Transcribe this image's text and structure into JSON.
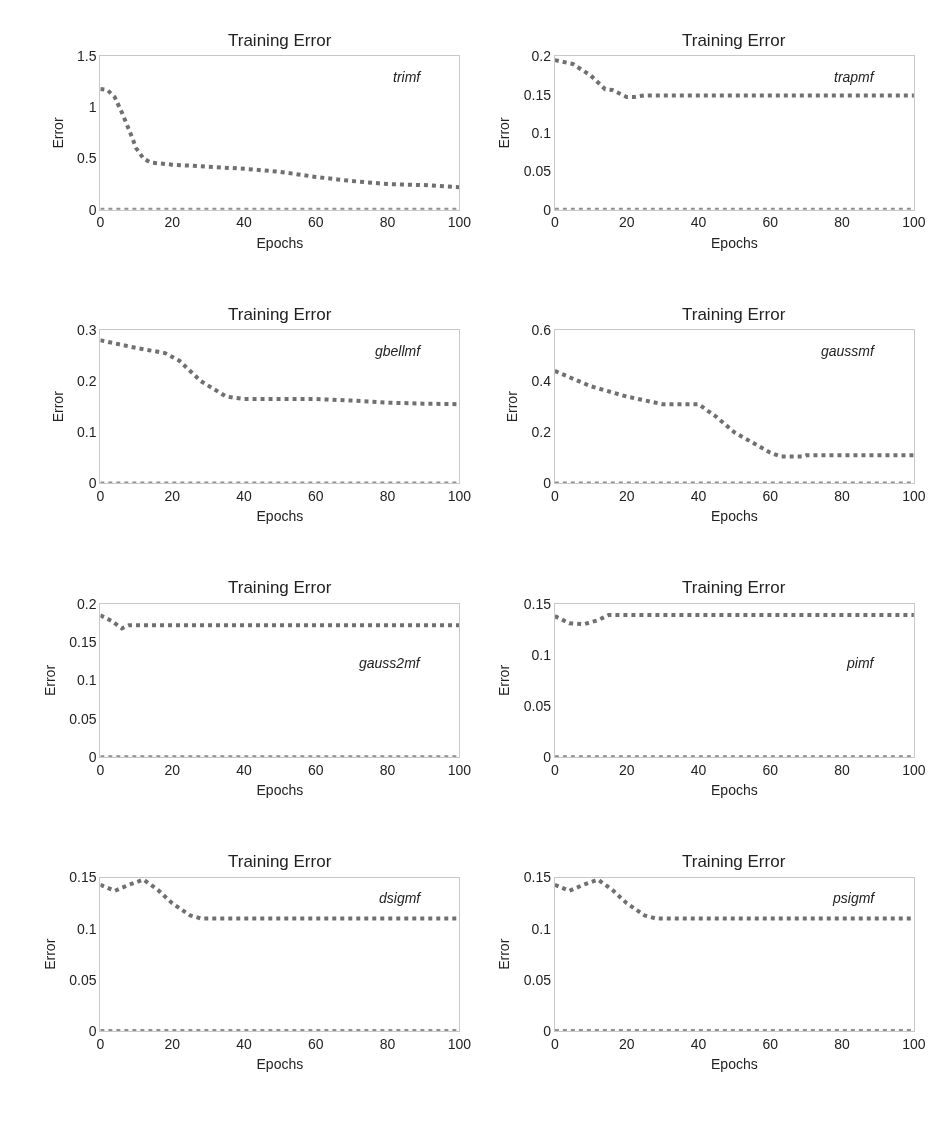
{
  "chart_data": [
    {
      "type": "line",
      "title": "Training Error",
      "xlabel": "Epochs",
      "ylabel": "Error",
      "annotations": [
        "trimf"
      ],
      "xlim": [
        0,
        100
      ],
      "xticks": [
        0,
        20,
        40,
        60,
        80,
        100
      ],
      "ylim": [
        0,
        1.5
      ],
      "yticks": [
        0,
        0.5,
        1,
        1.5
      ],
      "line_style": "dotted",
      "series": [
        {
          "color": "#707070",
          "x": [
            0,
            2,
            4,
            6,
            8,
            10,
            12,
            14,
            20,
            30,
            40,
            50,
            60,
            70,
            80,
            90,
            100
          ],
          "values": [
            1.18,
            1.17,
            1.1,
            0.95,
            0.78,
            0.6,
            0.5,
            0.46,
            0.44,
            0.42,
            0.4,
            0.37,
            0.32,
            0.28,
            0.25,
            0.24,
            0.22
          ]
        },
        {
          "color": "#909090",
          "x": [
            0,
            100
          ],
          "values": [
            0,
            0
          ]
        }
      ]
    },
    {
      "type": "line",
      "title": "Training Error",
      "xlabel": "Epochs",
      "ylabel": "Error",
      "annotations": [
        "trapmf"
      ],
      "xlim": [
        0,
        100
      ],
      "xticks": [
        0,
        20,
        40,
        60,
        80,
        100
      ],
      "ylim": [
        0,
        0.2
      ],
      "yticks": [
        0,
        0.05,
        0.1,
        0.15,
        0.2
      ],
      "line_style": "dotted",
      "series": [
        {
          "color": "#707070",
          "x": [
            0,
            5,
            10,
            14,
            16,
            20,
            22,
            25,
            100
          ],
          "values": [
            0.195,
            0.19,
            0.175,
            0.157,
            0.156,
            0.147,
            0.147,
            0.149,
            0.149
          ]
        },
        {
          "color": "#909090",
          "x": [
            0,
            100
          ],
          "values": [
            0,
            0
          ]
        }
      ]
    },
    {
      "type": "line",
      "title": "Training Error",
      "xlabel": "Epochs",
      "ylabel": "Error",
      "annotations": [
        "gbellmf"
      ],
      "xlim": [
        0,
        100
      ],
      "xticks": [
        0,
        20,
        40,
        60,
        80,
        100
      ],
      "ylim": [
        0,
        0.3
      ],
      "yticks": [
        0,
        0.1,
        0.2,
        0.3
      ],
      "line_style": "dotted",
      "series": [
        {
          "color": "#707070",
          "x": [
            0,
            10,
            18,
            22,
            28,
            35,
            40,
            50,
            60,
            70,
            80,
            90,
            100
          ],
          "values": [
            0.28,
            0.265,
            0.255,
            0.24,
            0.2,
            0.17,
            0.165,
            0.165,
            0.165,
            0.162,
            0.158,
            0.156,
            0.155
          ]
        },
        {
          "color": "#909090",
          "x": [
            0,
            100
          ],
          "values": [
            0,
            0
          ]
        }
      ]
    },
    {
      "type": "line",
      "title": "Training Error",
      "xlabel": "Epochs",
      "ylabel": "Error",
      "annotations": [
        "gaussmf"
      ],
      "xlim": [
        0,
        100
      ],
      "xticks": [
        0,
        20,
        40,
        60,
        80,
        100
      ],
      "ylim": [
        0,
        0.6
      ],
      "yticks": [
        0,
        0.2,
        0.4,
        0.6
      ],
      "line_style": "dotted",
      "series": [
        {
          "color": "#707070",
          "x": [
            0,
            10,
            20,
            30,
            40,
            45,
            50,
            55,
            60,
            63,
            69,
            70,
            100
          ],
          "values": [
            0.44,
            0.38,
            0.34,
            0.31,
            0.31,
            0.26,
            0.2,
            0.16,
            0.12,
            0.105,
            0.105,
            0.11,
            0.11
          ]
        },
        {
          "color": "#909090",
          "x": [
            0,
            100
          ],
          "values": [
            0,
            0
          ]
        }
      ]
    },
    {
      "type": "line",
      "title": "Training Error",
      "xlabel": "Epochs",
      "ylabel": "Error",
      "annotations": [
        "gauss2mf"
      ],
      "xlim": [
        0,
        100
      ],
      "xticks": [
        0,
        20,
        40,
        60,
        80,
        100
      ],
      "ylim": [
        0,
        0.2
      ],
      "yticks": [
        0,
        0.05,
        0.1,
        0.15,
        0.2
      ],
      "line_style": "dotted",
      "series": [
        {
          "color": "#707070",
          "x": [
            0,
            3,
            6,
            8,
            100
          ],
          "values": [
            0.185,
            0.178,
            0.168,
            0.172,
            0.172
          ]
        },
        {
          "color": "#909090",
          "x": [
            0,
            100
          ],
          "values": [
            0,
            0
          ]
        }
      ]
    },
    {
      "type": "line",
      "title": "Training Error",
      "xlabel": "Epochs",
      "ylabel": "Error",
      "annotations": [
        "pimf"
      ],
      "xlim": [
        0,
        100
      ],
      "xticks": [
        0,
        20,
        40,
        60,
        80,
        100
      ],
      "ylim": [
        0,
        0.15
      ],
      "yticks": [
        0,
        0.05,
        0.1,
        0.15
      ],
      "line_style": "dotted",
      "series": [
        {
          "color": "#707070",
          "x": [
            0,
            4,
            8,
            12,
            15,
            100
          ],
          "values": [
            0.138,
            0.131,
            0.13,
            0.134,
            0.139,
            0.139
          ]
        },
        {
          "color": "#909090",
          "x": [
            0,
            100
          ],
          "values": [
            0,
            0
          ]
        }
      ]
    },
    {
      "type": "line",
      "title": "Training Error",
      "xlabel": "Epochs",
      "ylabel": "Error",
      "annotations": [
        "dsigmf"
      ],
      "xlim": [
        0,
        100
      ],
      "xticks": [
        0,
        20,
        40,
        60,
        80,
        100
      ],
      "ylim": [
        0,
        0.15
      ],
      "yticks": [
        0,
        0.05,
        0.1,
        0.15
      ],
      "line_style": "dotted",
      "series": [
        {
          "color": "#707070",
          "x": [
            0,
            4,
            8,
            12,
            16,
            20,
            25,
            28,
            100
          ],
          "values": [
            0.143,
            0.137,
            0.143,
            0.148,
            0.138,
            0.125,
            0.113,
            0.11,
            0.11
          ]
        },
        {
          "color": "#909090",
          "x": [
            0,
            100
          ],
          "values": [
            0,
            0
          ]
        }
      ]
    },
    {
      "type": "line",
      "title": "Training Error",
      "xlabel": "Epochs",
      "ylabel": "Error",
      "annotations": [
        "psigmf"
      ],
      "xlim": [
        0,
        100
      ],
      "xticks": [
        0,
        20,
        40,
        60,
        80,
        100
      ],
      "ylim": [
        0,
        0.15
      ],
      "yticks": [
        0,
        0.05,
        0.1,
        0.15
      ],
      "line_style": "dotted",
      "series": [
        {
          "color": "#707070",
          "x": [
            0,
            4,
            8,
            12,
            16,
            20,
            25,
            28,
            100
          ],
          "values": [
            0.143,
            0.137,
            0.143,
            0.148,
            0.138,
            0.125,
            0.113,
            0.11,
            0.11
          ]
        },
        {
          "color": "#909090",
          "x": [
            0,
            100
          ],
          "values": [
            0,
            0
          ]
        }
      ]
    }
  ]
}
